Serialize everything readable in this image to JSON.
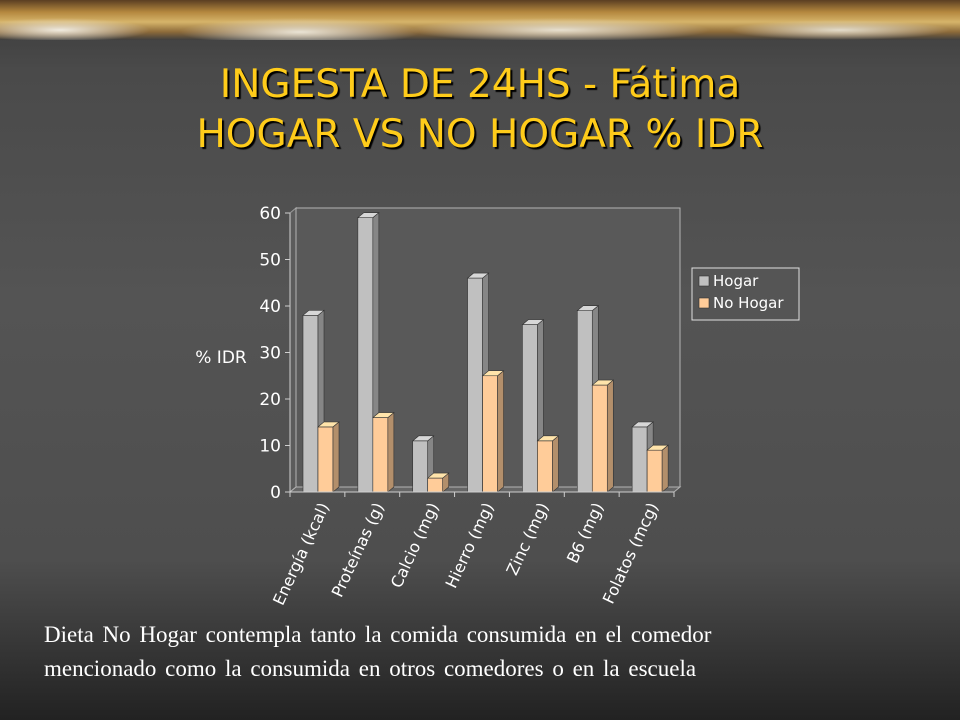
{
  "slide": {
    "title_line1": "INGESTA DE 24HS - Fátima",
    "title_line2": "HOGAR VS NO HOGAR % IDR",
    "footnote_line1": "Dieta No Hogar contempla tanto la comida consumida  en el comedor",
    "footnote_line2": "mencionado  como la consumida  en otros comedores o en la escuela"
  },
  "chart_data": {
    "type": "bar",
    "title": "",
    "xlabel": "",
    "ylabel": "% IDR",
    "ylim": [
      0,
      60
    ],
    "yticks": [
      0,
      10,
      20,
      30,
      40,
      50,
      60
    ],
    "grid": false,
    "legend_position": "right",
    "categories": [
      "Energía (kcal)",
      "Proteínas (g)",
      "Calcio (mg)",
      "Hierro (mg)",
      "Zinc (mg)",
      "B6 (mg)",
      "Folatos (mcg)"
    ],
    "series": [
      {
        "name": "Hogar",
        "values": [
          38,
          59,
          11,
          46,
          36,
          39,
          14
        ],
        "color": "#c0c0c0"
      },
      {
        "name": "No Hogar",
        "values": [
          14,
          16,
          3,
          25,
          11,
          23,
          9
        ],
        "color": "#ffcc99"
      }
    ]
  }
}
